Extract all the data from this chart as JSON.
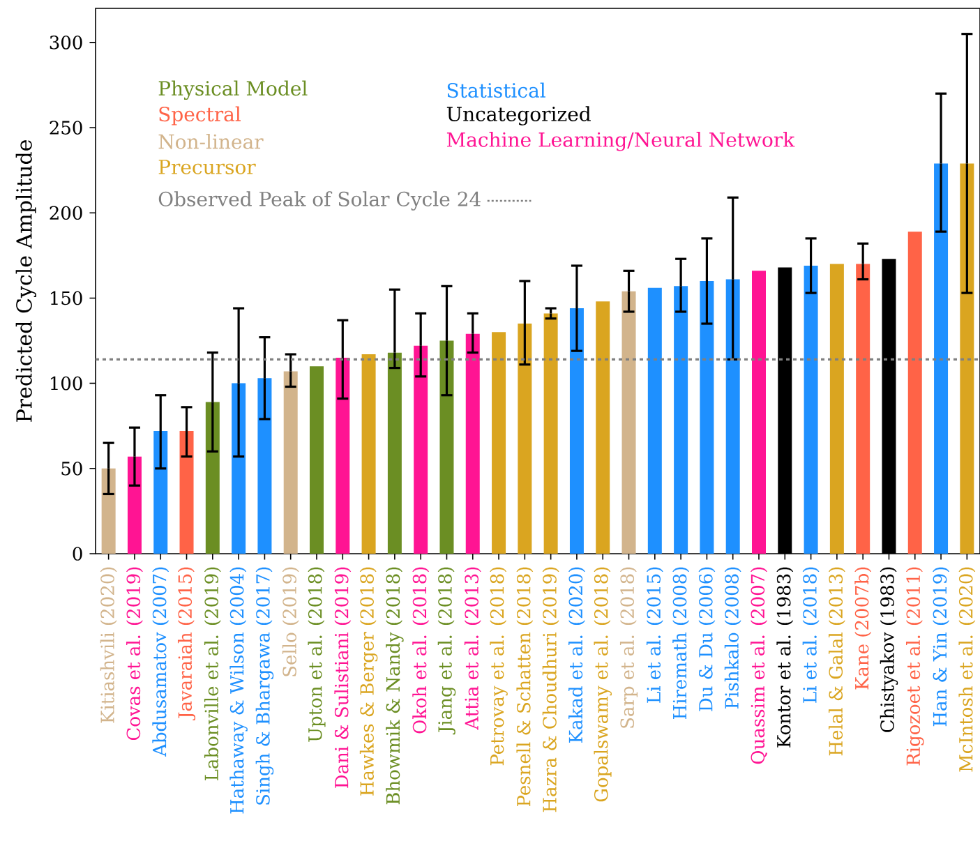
{
  "chart_data": {
    "type": "bar",
    "ylabel": "Predicted Cycle Amplitude",
    "categories": [
      "Kitiashvili (2020)",
      "Covas et al. (2019)",
      "Abdusamatov (2007)",
      "Javaraiah (2015)",
      "Labonville et al. (2019)",
      "Hathaway & Wilson (2004)",
      "Singh & Bhargawa (2017)",
      "Sello (2019)",
      "Upton et al. (2018)",
      "Dani & Sulistiani (2019)",
      "Hawkes & Berger (2018)",
      "Bhowmik & Nandy (2018)",
      "Okoh et al. (2018)",
      "Jiang et al. (2018)",
      "Attia et al. (2013)",
      "Petrovay et al. (2018)",
      "Pesnell & Schatten (2018)",
      "Hazra & Choudhuri (2019)",
      "Kakad et al. (2020)",
      "Gopalswamy et al. (2018)",
      "Sarp et al. (2018)",
      "Li et al. (2015)",
      "Hiremath (2008)",
      "Du & Du (2006)",
      "Pishkalo (2008)",
      "Quassim et al. (2007)",
      "Kontor et al. (1983)",
      "Li et al. (2018)",
      "Helal & Galal (2013)",
      "Kane (2007b)",
      "Chistyakov (1983)",
      "Rigozoet et al. (2011)",
      "Han & Yin (2019)",
      "McIntosh et al. (2020)"
    ],
    "series": [
      {
        "name": "Physical Model",
        "color": "#6b8e23",
        "values": [
          null,
          null,
          null,
          null,
          89,
          null,
          null,
          null,
          110,
          null,
          null,
          118,
          null,
          125,
          null,
          null,
          null,
          null,
          null,
          null,
          null,
          null,
          null,
          null,
          null,
          null,
          null,
          null,
          null,
          null,
          null,
          null,
          null,
          null
        ],
        "errors": [
          null,
          null,
          null,
          null,
          [
            60,
            118
          ],
          null,
          null,
          null,
          null,
          null,
          null,
          [
            109,
            155
          ],
          null,
          [
            93,
            157
          ],
          null,
          null,
          null,
          null,
          null,
          null,
          null,
          null,
          null,
          null,
          null,
          null,
          null,
          null,
          null,
          null,
          null,
          null,
          null,
          null
        ]
      },
      {
        "name": "Spectral",
        "color": "#ff6347",
        "values": [
          null,
          null,
          null,
          72,
          null,
          null,
          null,
          null,
          null,
          null,
          null,
          null,
          null,
          null,
          null,
          null,
          null,
          null,
          null,
          null,
          null,
          null,
          null,
          null,
          null,
          null,
          null,
          null,
          null,
          170,
          null,
          189,
          null,
          null
        ],
        "errors": [
          null,
          null,
          null,
          [
            57,
            86
          ],
          null,
          null,
          null,
          null,
          null,
          null,
          null,
          null,
          null,
          null,
          null,
          null,
          null,
          null,
          null,
          null,
          null,
          null,
          null,
          null,
          null,
          null,
          null,
          null,
          null,
          [
            161,
            182
          ],
          null,
          null,
          null,
          null
        ]
      },
      {
        "name": "Non-linear",
        "color": "#d2b48c",
        "values": [
          50,
          null,
          null,
          null,
          null,
          null,
          null,
          107,
          null,
          null,
          null,
          null,
          null,
          null,
          null,
          null,
          null,
          null,
          null,
          null,
          154,
          null,
          null,
          null,
          null,
          null,
          null,
          null,
          null,
          null,
          null,
          null,
          null,
          null
        ],
        "errors": [
          [
            35,
            65
          ],
          null,
          null,
          null,
          null,
          null,
          null,
          [
            98,
            117
          ],
          null,
          null,
          null,
          null,
          null,
          null,
          null,
          null,
          null,
          null,
          null,
          null,
          [
            142,
            166
          ],
          null,
          null,
          null,
          null,
          null,
          null,
          null,
          null,
          null,
          null,
          null,
          null,
          null
        ]
      },
      {
        "name": "Precursor",
        "color": "#daa520",
        "values": [
          null,
          null,
          null,
          null,
          null,
          null,
          null,
          null,
          null,
          null,
          117,
          null,
          null,
          null,
          null,
          130,
          135,
          141,
          null,
          148,
          null,
          null,
          null,
          null,
          null,
          null,
          null,
          null,
          170,
          null,
          null,
          null,
          null,
          229
        ],
        "errors": [
          null,
          null,
          null,
          null,
          null,
          null,
          null,
          null,
          null,
          null,
          null,
          null,
          null,
          null,
          null,
          null,
          [
            111,
            160
          ],
          [
            138,
            144
          ],
          null,
          null,
          null,
          null,
          null,
          null,
          null,
          null,
          null,
          null,
          null,
          null,
          null,
          null,
          null,
          [
            153,
            305
          ]
        ]
      },
      {
        "name": "Statistical",
        "color": "#1e90ff",
        "values": [
          null,
          null,
          72,
          null,
          null,
          100,
          103,
          null,
          null,
          null,
          null,
          null,
          null,
          null,
          null,
          null,
          null,
          null,
          144,
          null,
          null,
          156,
          157,
          160,
          161,
          null,
          null,
          169,
          null,
          null,
          null,
          null,
          229,
          null
        ],
        "errors": [
          null,
          null,
          [
            50,
            93
          ],
          null,
          null,
          [
            57,
            144
          ],
          [
            79,
            127
          ],
          null,
          null,
          null,
          null,
          null,
          null,
          null,
          null,
          null,
          null,
          null,
          [
            119,
            169
          ],
          null,
          null,
          null,
          [
            142,
            173
          ],
          [
            135,
            185
          ],
          [
            114,
            209
          ],
          null,
          null,
          [
            153,
            185
          ],
          null,
          null,
          null,
          null,
          [
            189,
            270
          ],
          null
        ]
      },
      {
        "name": "Uncategorized",
        "color": "#000000",
        "values": [
          null,
          null,
          null,
          null,
          null,
          null,
          null,
          null,
          null,
          null,
          null,
          null,
          null,
          null,
          null,
          null,
          null,
          null,
          null,
          null,
          null,
          null,
          null,
          null,
          null,
          null,
          168,
          null,
          null,
          null,
          173,
          null,
          null,
          null
        ]
      },
      {
        "name": "Machine Learning/Neural Network",
        "color": "#ff1493",
        "values": [
          null,
          57,
          null,
          null,
          null,
          null,
          null,
          null,
          null,
          115,
          null,
          null,
          122,
          null,
          129,
          null,
          null,
          null,
          null,
          null,
          null,
          null,
          null,
          null,
          null,
          166,
          null,
          null,
          null,
          null,
          null,
          null,
          null,
          null
        ],
        "errors": [
          null,
          [
            40,
            74
          ],
          null,
          null,
          null,
          null,
          null,
          null,
          null,
          [
            91,
            137
          ],
          null,
          null,
          [
            104,
            141
          ],
          null,
          [
            118,
            141
          ],
          null,
          null,
          null,
          null,
          null,
          null,
          null,
          null,
          null,
          null,
          null,
          null,
          null,
          null,
          null,
          null,
          null,
          null,
          null
        ]
      }
    ],
    "ylim": [
      0,
      320
    ],
    "yticks": [
      0,
      50,
      100,
      150,
      200,
      250,
      300
    ],
    "ref_lines": [
      {
        "axis": "y",
        "value": 114,
        "label": "Observed Peak of Solar Cycle 24",
        "color": "#808080",
        "line_style": "dotted"
      }
    ],
    "legend": "top left",
    "grid": false
  }
}
